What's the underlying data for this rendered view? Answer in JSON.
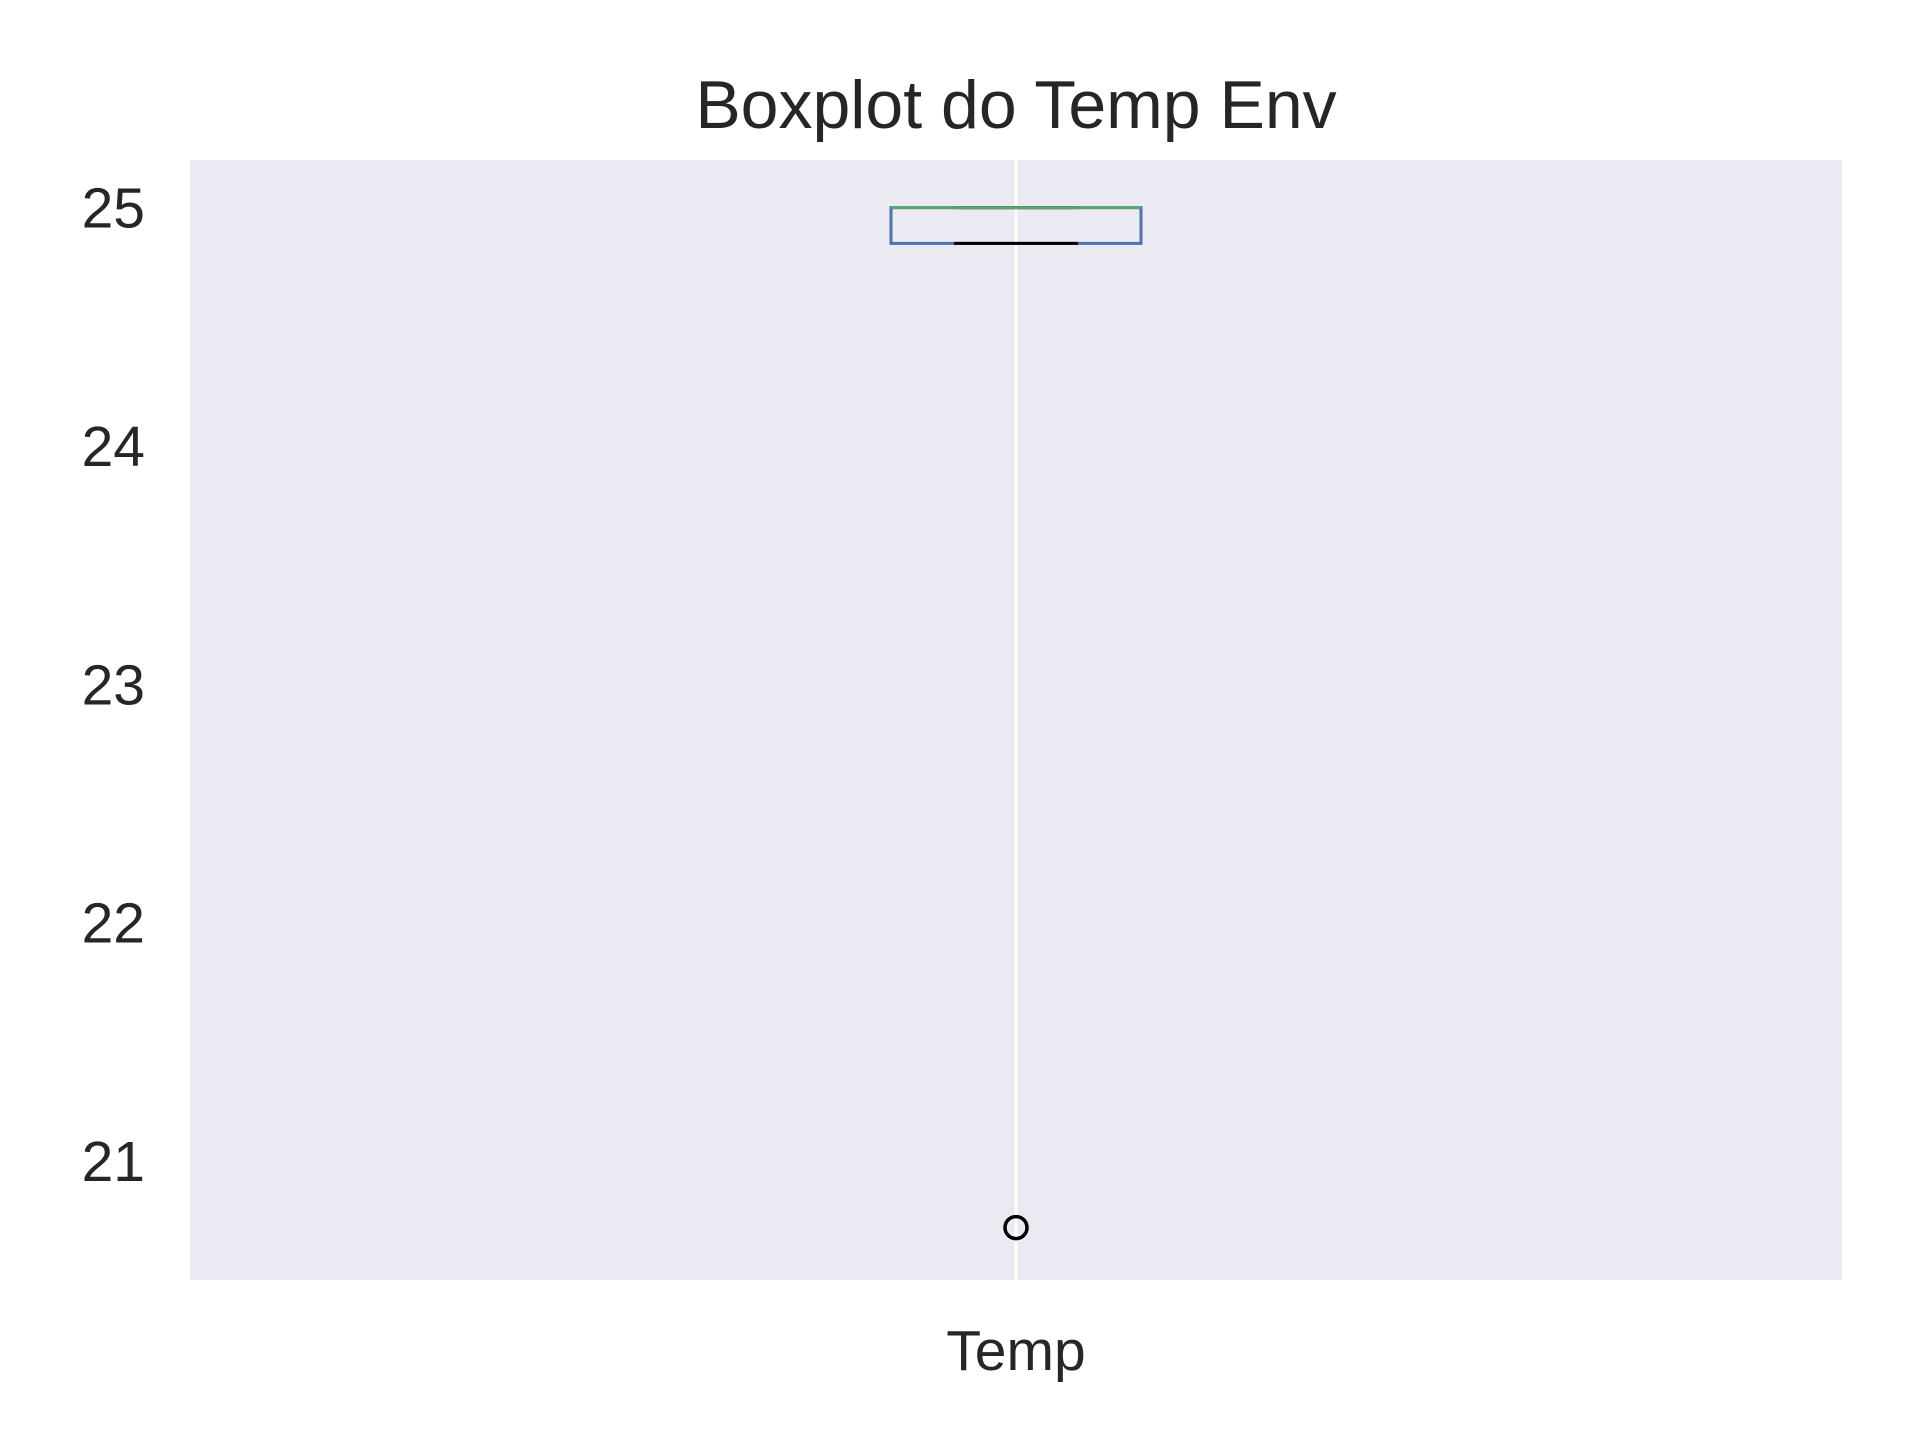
{
  "chart_data": {
    "type": "boxplot",
    "title": "Boxplot do Temp Env",
    "xlabel": "",
    "ylabel": "",
    "categories": [
      "Temp"
    ],
    "boxes": [
      {
        "category": "Temp",
        "whisker_low": 24.85,
        "q1": 24.85,
        "median": 25.0,
        "q3": 25.0,
        "whisker_high": 25.0,
        "outliers": [
          20.72
        ]
      }
    ],
    "yticks": [
      21,
      22,
      23,
      24,
      25
    ],
    "ylim": [
      20.5,
      25.2
    ],
    "grid": true,
    "colors": {
      "background": "#EAEAF2",
      "grid": "#FFFFFF",
      "box": "#4C72B0",
      "median": "#55A868",
      "whisker": "#000000",
      "outlier": "#000000",
      "text": "#262626"
    }
  }
}
